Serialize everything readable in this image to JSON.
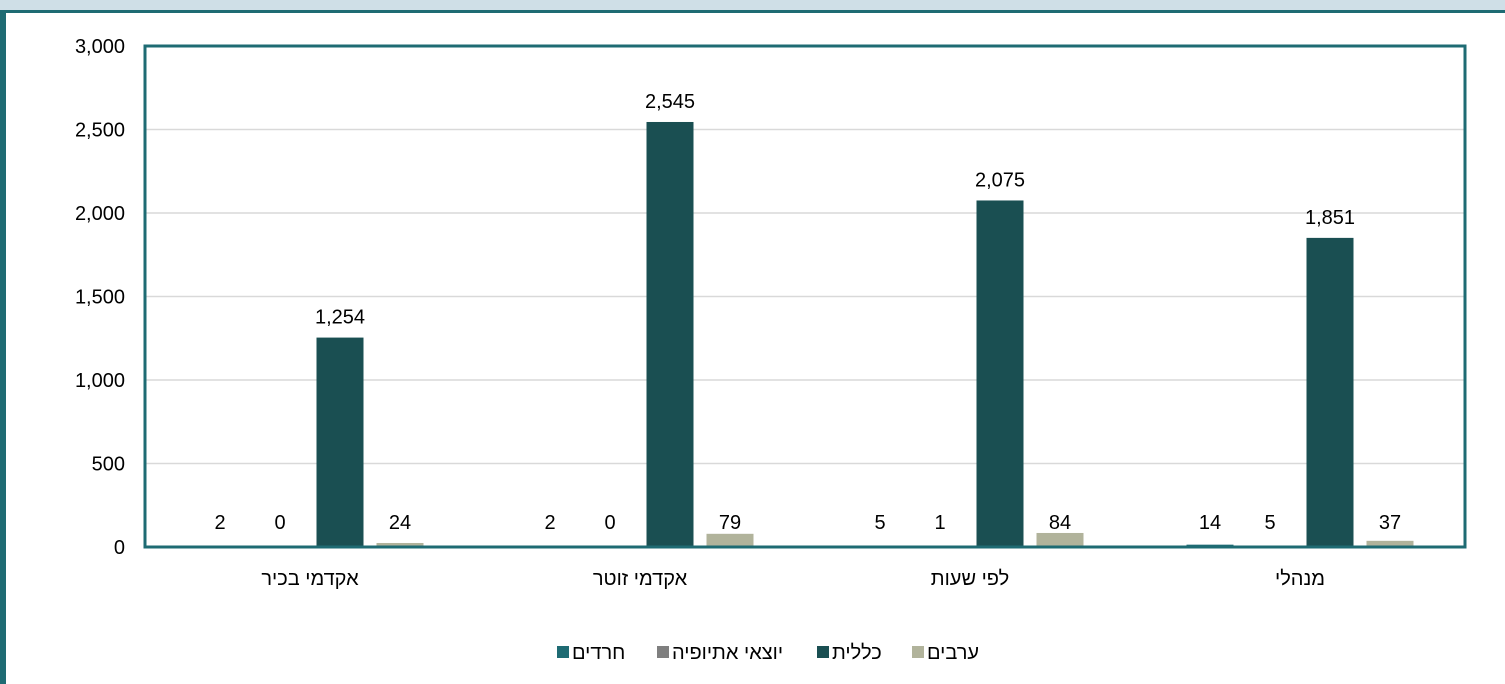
{
  "chart_data": {
    "type": "bar",
    "title": "",
    "xlabel": "",
    "ylabel": "",
    "ylim": [
      0,
      3000
    ],
    "yticks": [
      0,
      500,
      1000,
      1500,
      2000,
      2500,
      3000
    ],
    "ytick_labels": [
      "0",
      "500",
      "1,000",
      "1,500",
      "2,000",
      "2,500",
      "3,000"
    ],
    "grid": true,
    "legend_position": "bottom",
    "categories": [
      "אקדמי בכיר",
      "אקדמי זוטר",
      "לפי שעות",
      "מנהלי"
    ],
    "series": [
      {
        "name": "חרדים",
        "color": "#1e6b73",
        "values": [
          2,
          2,
          5,
          14
        ],
        "labels": [
          "2",
          "2",
          "5",
          "14"
        ]
      },
      {
        "name": "יוצאי אתיופיה",
        "color": "#7f7f7f",
        "values": [
          0,
          0,
          1,
          5
        ],
        "labels": [
          "0",
          "0",
          "1",
          "5"
        ]
      },
      {
        "name": "כללית",
        "color": "#1a4f52",
        "values": [
          1254,
          2545,
          2075,
          1851
        ],
        "labels": [
          "1,254",
          "2,545",
          "2,075",
          "1,851"
        ]
      },
      {
        "name": "ערבים",
        "color": "#b1b39b",
        "values": [
          24,
          79,
          84,
          37
        ],
        "labels": [
          "24",
          "79",
          "84",
          "37"
        ]
      }
    ]
  }
}
